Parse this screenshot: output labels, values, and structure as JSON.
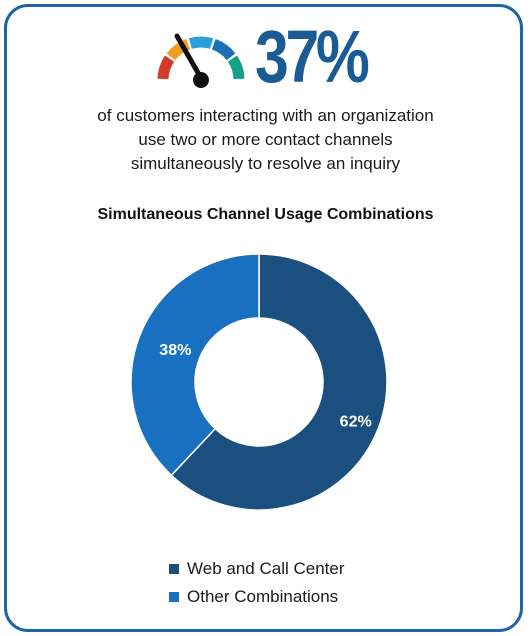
{
  "headline": {
    "stat": "37%",
    "description_lines": [
      "of customers interacting with an organization",
      "use two or more contact channels",
      "simultaneously to resolve an inquiry"
    ],
    "gauge_colors": [
      "#d63a2a",
      "#f0a020",
      "#2aa0d8",
      "#1a6fb8",
      "#14a089"
    ]
  },
  "chart_data": {
    "type": "pie",
    "title": "Simultaneous Channel Usage Combinations",
    "donut": true,
    "slices": [
      {
        "name": "Web and Call Center",
        "value": 62,
        "label": "62%",
        "color": "#1a4f80"
      },
      {
        "name": "Other Combinations",
        "value": 38,
        "label": "38%",
        "color": "#1a70c0"
      }
    ],
    "legend_position": "bottom"
  }
}
